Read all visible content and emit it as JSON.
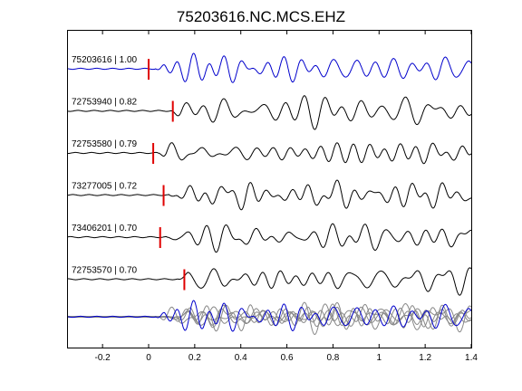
{
  "chart_data": {
    "type": "line",
    "title": "75203616.NC.MCS.EHZ",
    "xlabel": "",
    "ylabel": "",
    "xlim": [
      -0.35,
      1.4
    ],
    "xticks": [
      -0.2,
      0,
      0.2,
      0.4,
      0.6,
      0.8,
      1,
      1.2,
      1.4
    ],
    "xtick_labels": [
      "-0.2",
      "0",
      "0.2",
      "0.4",
      "0.6",
      "0.8",
      "1",
      "1.2",
      "1.4"
    ],
    "grid": false,
    "colors": {
      "master": "#0000cc",
      "trace": "#000000",
      "overlay": "#888888",
      "pick": "#e00000"
    },
    "traces": [
      {
        "label": "75203616 | 1.00",
        "pick_time": 0.0,
        "color": "#0000cc",
        "onset": 0.03
      },
      {
        "label": "72753940 | 0.82",
        "pick_time": 0.105,
        "color": "#000000",
        "onset": 0.1
      },
      {
        "label": "72753580 | 0.79",
        "pick_time": 0.02,
        "color": "#000000",
        "onset": 0.04
      },
      {
        "label": "73277005 | 0.72",
        "pick_time": 0.065,
        "color": "#000000",
        "onset": 0.09
      },
      {
        "label": "73406201 | 0.70",
        "pick_time": 0.05,
        "color": "#000000",
        "onset": 0.08
      },
      {
        "label": "72753570 | 0.70",
        "pick_time": 0.155,
        "color": "#000000",
        "onset": 0.13
      }
    ]
  }
}
